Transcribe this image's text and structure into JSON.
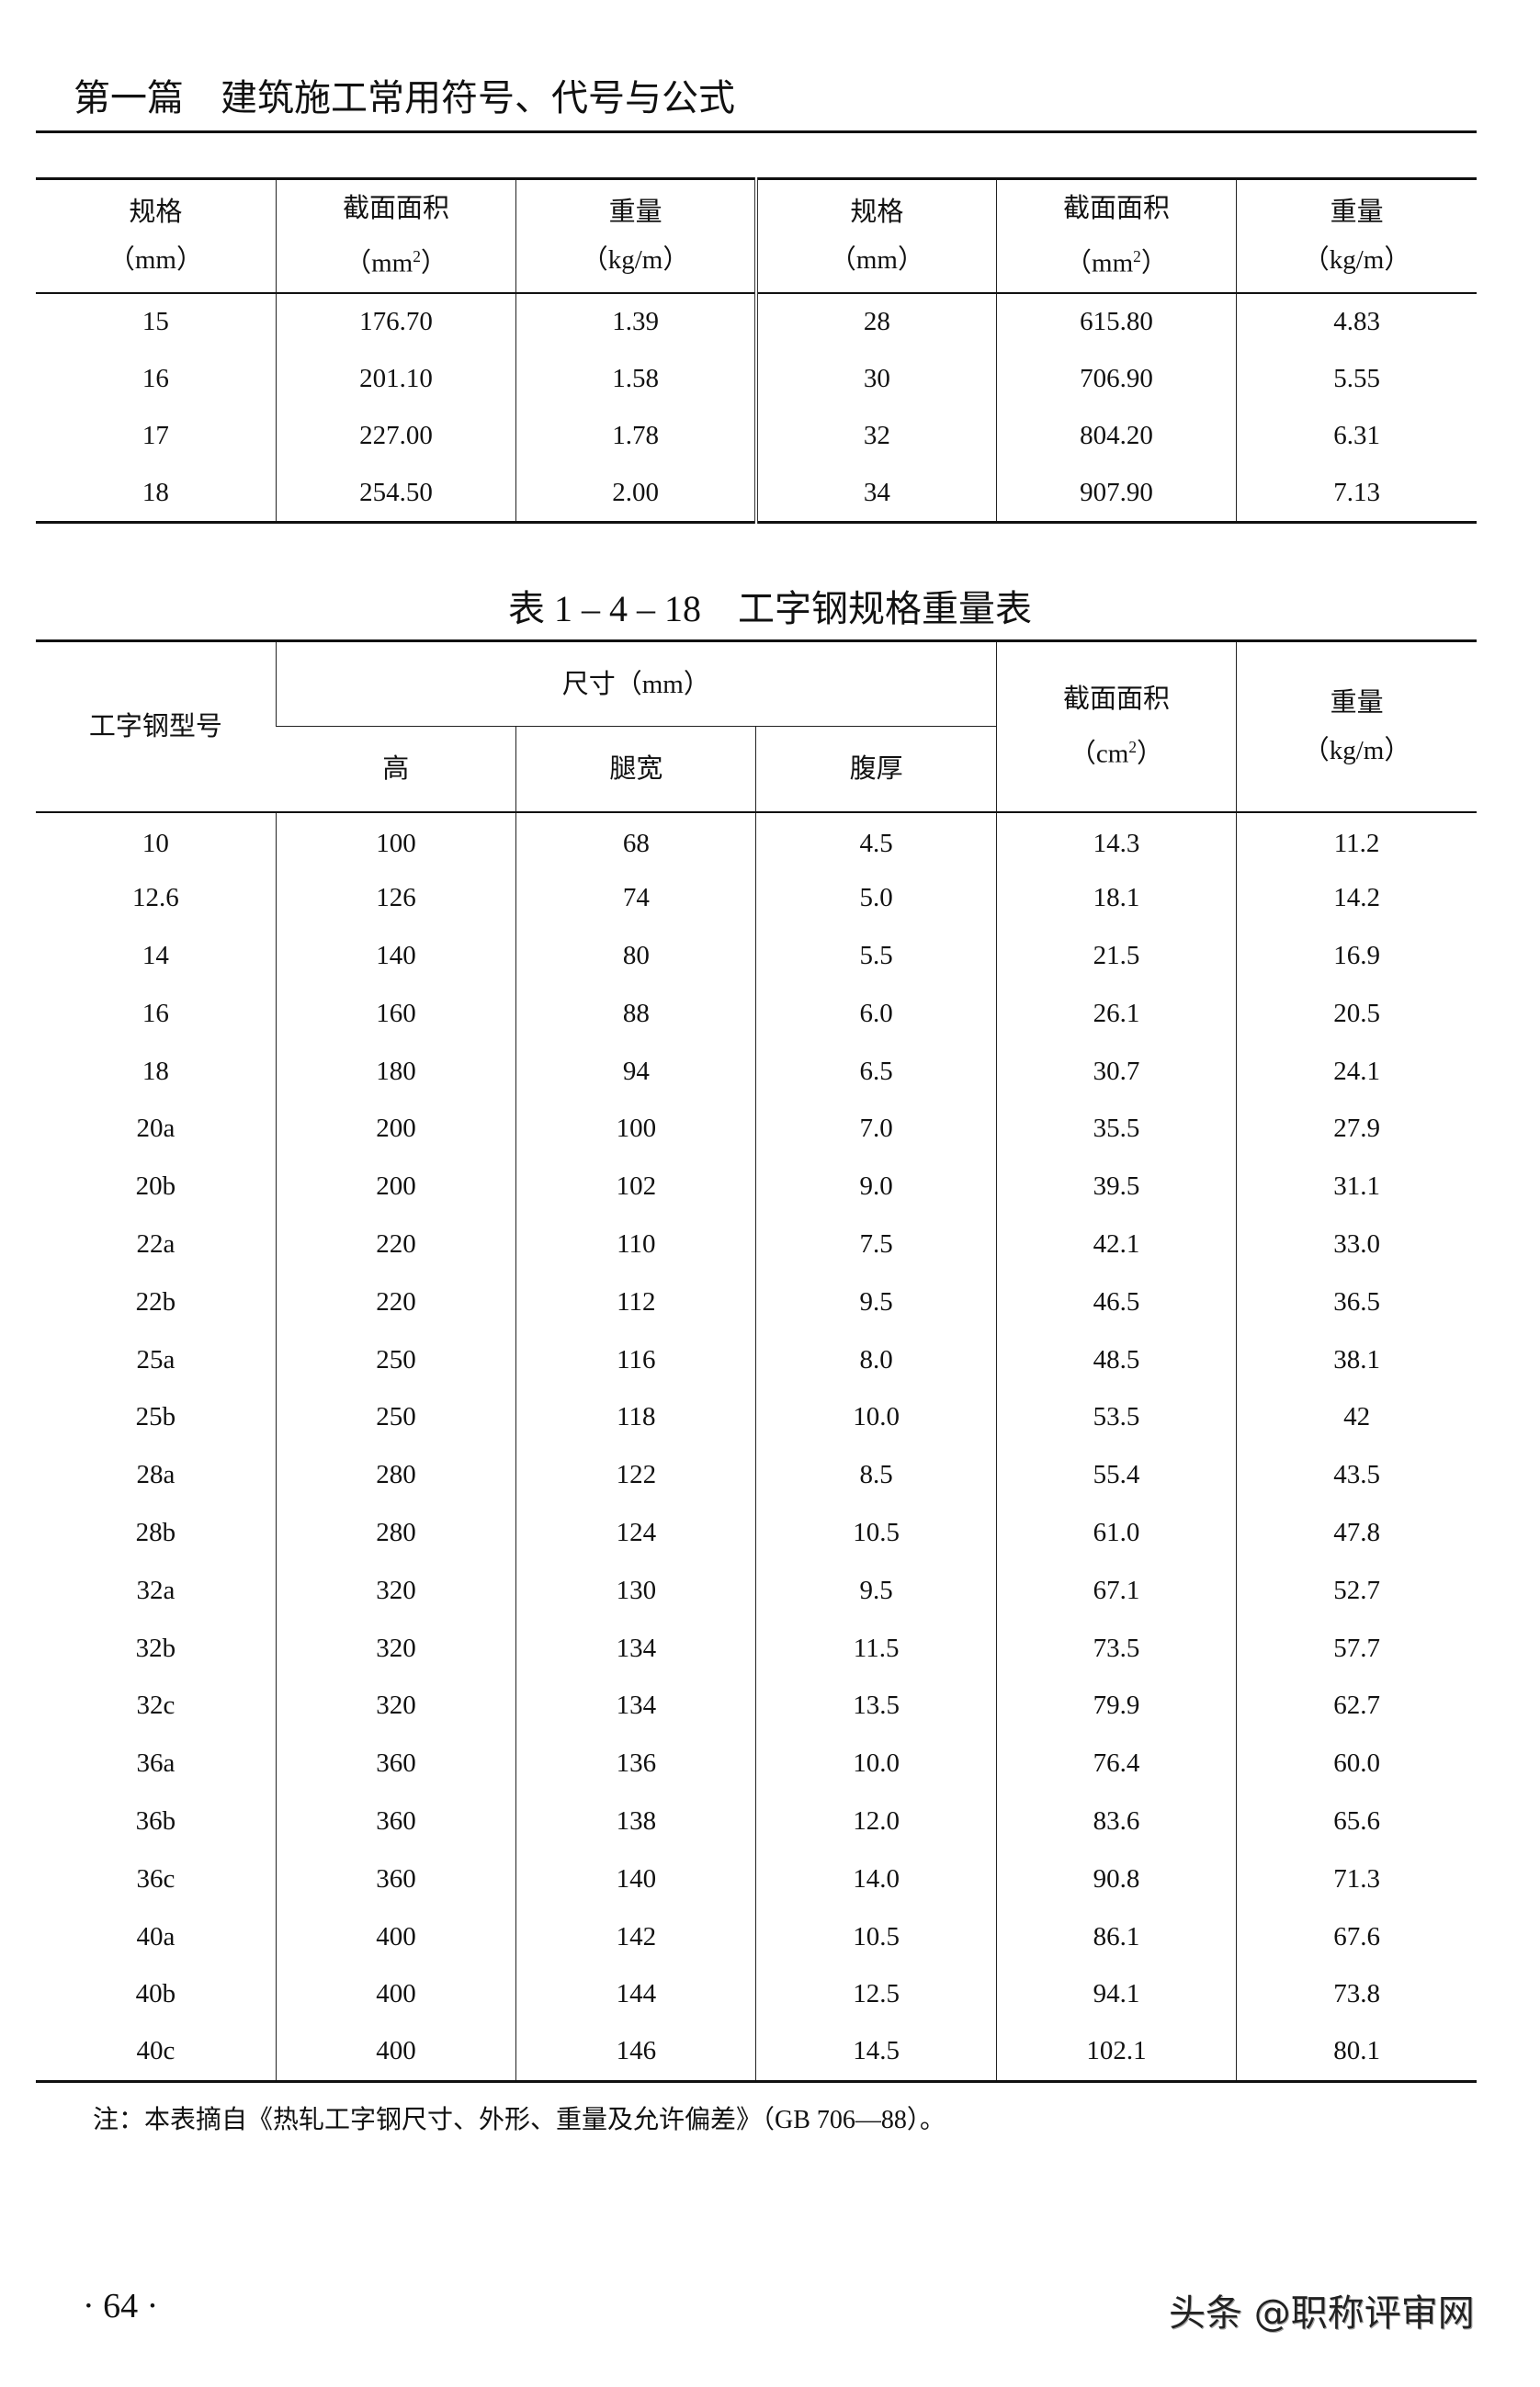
{
  "page_header": "第一篇　建筑施工常用符号、代号与公式",
  "table1": {
    "headers": [
      {
        "name": "规格",
        "unit": "（mm）"
      },
      {
        "name": "截面面积",
        "unit": "（mm",
        "sup": "2",
        "close": "）"
      },
      {
        "name": "重量",
        "unit": "（kg/m）"
      },
      {
        "name": "规格",
        "unit": "（mm）"
      },
      {
        "name": "截面面积",
        "unit": "（mm",
        "sup": "2",
        "close": "）"
      },
      {
        "name": "重量",
        "unit": "（kg/m）"
      }
    ],
    "rows": [
      [
        "15",
        "176.70",
        "1.39",
        "28",
        "615.80",
        "4.83"
      ],
      [
        "16",
        "201.10",
        "1.58",
        "30",
        "706.90",
        "5.55"
      ],
      [
        "17",
        "227.00",
        "1.78",
        "32",
        "804.20",
        "6.31"
      ],
      [
        "18",
        "254.50",
        "2.00",
        "34",
        "907.90",
        "7.13"
      ]
    ]
  },
  "table2": {
    "title": "表 1 – 4 – 18　工字钢规格重量表",
    "header": {
      "model": "工字钢型号",
      "size_group": "尺寸（mm）",
      "height": "高",
      "flange_width": "腿宽",
      "web_thickness": "腹厚",
      "area": "截面面积",
      "area_unit": "（cm",
      "area_sup": "2",
      "area_close": "）",
      "weight": "重量",
      "weight_unit": "（kg/m）"
    },
    "rows": [
      [
        "10",
        "100",
        "68",
        "4.5",
        "14.3",
        "11.2"
      ],
      [
        "12.6",
        "126",
        "74",
        "5.0",
        "18.1",
        "14.2"
      ],
      [
        "14",
        "140",
        "80",
        "5.5",
        "21.5",
        "16.9"
      ],
      [
        "16",
        "160",
        "88",
        "6.0",
        "26.1",
        "20.5"
      ],
      [
        "18",
        "180",
        "94",
        "6.5",
        "30.7",
        "24.1"
      ],
      [
        "20a",
        "200",
        "100",
        "7.0",
        "35.5",
        "27.9"
      ],
      [
        "20b",
        "200",
        "102",
        "9.0",
        "39.5",
        "31.1"
      ],
      [
        "22a",
        "220",
        "110",
        "7.5",
        "42.1",
        "33.0"
      ],
      [
        "22b",
        "220",
        "112",
        "9.5",
        "46.5",
        "36.5"
      ],
      [
        "25a",
        "250",
        "116",
        "8.0",
        "48.5",
        "38.1"
      ],
      [
        "25b",
        "250",
        "118",
        "10.0",
        "53.5",
        "42"
      ],
      [
        "28a",
        "280",
        "122",
        "8.5",
        "55.4",
        "43.5"
      ],
      [
        "28b",
        "280",
        "124",
        "10.5",
        "61.0",
        "47.8"
      ],
      [
        "32a",
        "320",
        "130",
        "9.5",
        "67.1",
        "52.7"
      ],
      [
        "32b",
        "320",
        "134",
        "11.5",
        "73.5",
        "57.7"
      ],
      [
        "32c",
        "320",
        "134",
        "13.5",
        "79.9",
        "62.7"
      ],
      [
        "36a",
        "360",
        "136",
        "10.0",
        "76.4",
        "60.0"
      ],
      [
        "36b",
        "360",
        "138",
        "12.0",
        "83.6",
        "65.6"
      ],
      [
        "36c",
        "360",
        "140",
        "14.0",
        "90.8",
        "71.3"
      ],
      [
        "40a",
        "400",
        "142",
        "10.5",
        "86.1",
        "67.6"
      ],
      [
        "40b",
        "400",
        "144",
        "12.5",
        "94.1",
        "73.8"
      ],
      [
        "40c",
        "400",
        "146",
        "14.5",
        "102.1",
        "80.1"
      ]
    ]
  },
  "note": "注：本表摘自《热轧工字钢尺寸、外形、重量及允许偏差》（GB 706—88）。",
  "page_number": "· 64 ·",
  "watermark": "头条 @职称评审网"
}
